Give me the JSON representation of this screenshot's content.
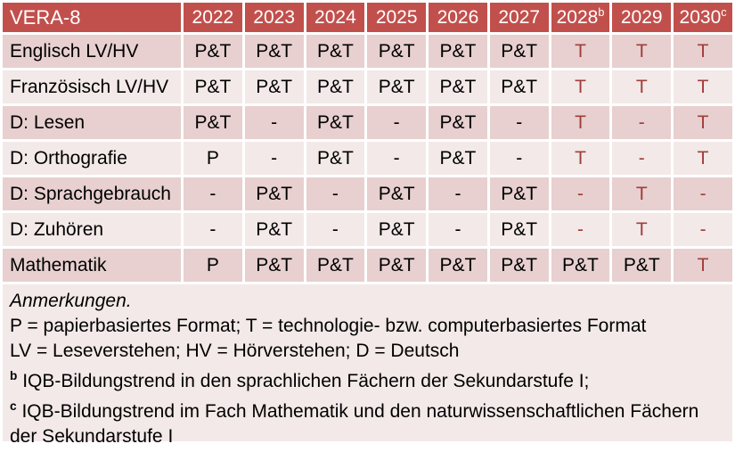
{
  "colors": {
    "header_bg": "#C1504D",
    "header_text": "#FFFFFF",
    "band_dark": "#E7D0CF",
    "band_light": "#F2E9E8",
    "accent_red": "#A03E3C",
    "body_text": "#000000"
  },
  "table": {
    "header": {
      "title": "VERA-8",
      "years": [
        {
          "label": "2022",
          "sup": ""
        },
        {
          "label": "2023",
          "sup": ""
        },
        {
          "label": "2024",
          "sup": ""
        },
        {
          "label": "2025",
          "sup": ""
        },
        {
          "label": "2026",
          "sup": ""
        },
        {
          "label": "2027",
          "sup": ""
        },
        {
          "label": "2028",
          "sup": "b"
        },
        {
          "label": "2029",
          "sup": ""
        },
        {
          "label": "2030",
          "sup": "c"
        }
      ]
    },
    "rows": [
      {
        "label": "Englisch LV/HV",
        "cells": [
          {
            "text": "P&T",
            "red": false
          },
          {
            "text": "P&T",
            "red": false
          },
          {
            "text": "P&T",
            "red": false
          },
          {
            "text": "P&T",
            "red": false
          },
          {
            "text": "P&T",
            "red": false
          },
          {
            "text": "P&T",
            "red": false
          },
          {
            "text": "T",
            "red": true
          },
          {
            "text": "T",
            "red": true
          },
          {
            "text": "T",
            "red": true
          }
        ]
      },
      {
        "label": "Französisch LV/HV",
        "cells": [
          {
            "text": "P&T",
            "red": false
          },
          {
            "text": "P&T",
            "red": false
          },
          {
            "text": "P&T",
            "red": false
          },
          {
            "text": "P&T",
            "red": false
          },
          {
            "text": "P&T",
            "red": false
          },
          {
            "text": "P&T",
            "red": false
          },
          {
            "text": "T",
            "red": true
          },
          {
            "text": "T",
            "red": true
          },
          {
            "text": "T",
            "red": true
          }
        ]
      },
      {
        "label": "D: Lesen",
        "cells": [
          {
            "text": "P&T",
            "red": false
          },
          {
            "text": "-",
            "red": false
          },
          {
            "text": "P&T",
            "red": false
          },
          {
            "text": "-",
            "red": false
          },
          {
            "text": "P&T",
            "red": false
          },
          {
            "text": "-",
            "red": false
          },
          {
            "text": "T",
            "red": true
          },
          {
            "text": "-",
            "red": true
          },
          {
            "text": "T",
            "red": true
          }
        ]
      },
      {
        "label": "D: Orthografie",
        "cells": [
          {
            "text": "P",
            "red": false
          },
          {
            "text": "-",
            "red": false
          },
          {
            "text": "P&T",
            "red": false
          },
          {
            "text": "-",
            "red": false
          },
          {
            "text": "P&T",
            "red": false
          },
          {
            "text": "-",
            "red": false
          },
          {
            "text": "T",
            "red": true
          },
          {
            "text": "-",
            "red": true
          },
          {
            "text": "T",
            "red": true
          }
        ]
      },
      {
        "label": "D: Sprachgebrauch",
        "cells": [
          {
            "text": "-",
            "red": false
          },
          {
            "text": "P&T",
            "red": false
          },
          {
            "text": "-",
            "red": false
          },
          {
            "text": "P&T",
            "red": false
          },
          {
            "text": "-",
            "red": false
          },
          {
            "text": "P&T",
            "red": false
          },
          {
            "text": "-",
            "red": true
          },
          {
            "text": "T",
            "red": true
          },
          {
            "text": "-",
            "red": true
          }
        ]
      },
      {
        "label": "D: Zuhören",
        "cells": [
          {
            "text": "-",
            "red": false
          },
          {
            "text": "P&T",
            "red": false
          },
          {
            "text": "-",
            "red": false
          },
          {
            "text": "P&T",
            "red": false
          },
          {
            "text": "-",
            "red": false
          },
          {
            "text": "P&T",
            "red": false
          },
          {
            "text": "-",
            "red": true
          },
          {
            "text": "T",
            "red": true
          },
          {
            "text": "-",
            "red": true
          }
        ]
      },
      {
        "label": "Mathematik",
        "cells": [
          {
            "text": "P",
            "red": false
          },
          {
            "text": "P&T",
            "red": false
          },
          {
            "text": "P&T",
            "red": false
          },
          {
            "text": "P&T",
            "red": false
          },
          {
            "text": "P&T",
            "red": false
          },
          {
            "text": "P&T",
            "red": false
          },
          {
            "text": "P&T",
            "red": false
          },
          {
            "text": "P&T",
            "red": false
          },
          {
            "text": "T",
            "red": true
          }
        ]
      }
    ]
  },
  "notes": {
    "heading": "Anmerkungen.",
    "formats": "P = papierbasiertes Format; T = technologie- bzw. computerbasiertes Format",
    "abbreviations": "LV = Leseverstehen; HV = Hörverstehen; D = Deutsch",
    "b": {
      "marker": "b",
      "text": "IQB-Bildungstrend in den sprachlichen Fächern der Sekundarstufe I;"
    },
    "c": {
      "marker": "c",
      "text": "IQB-Bildungstrend im Fach Mathematik und den naturwissenschaftlichen Fächern der Sekundarstufe I"
    }
  }
}
